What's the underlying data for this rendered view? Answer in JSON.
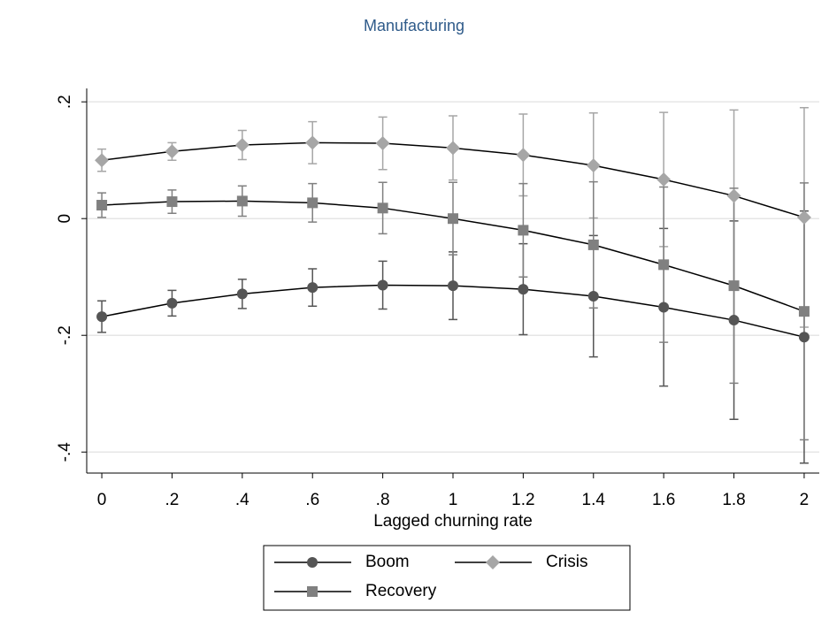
{
  "chart_data": {
    "type": "line",
    "title": "Manufacturing",
    "x_label": "Lagged churning rate",
    "x": [
      0,
      0.2,
      0.4,
      0.6,
      0.8,
      1,
      1.2,
      1.4,
      1.6,
      1.8,
      2
    ],
    "xlim": [
      -0.043,
      2.043
    ],
    "xticks": [
      0,
      {
        "value": 0.2,
        "label": ".2"
      },
      {
        "value": 0.4,
        "label": ".4"
      },
      {
        "value": 0.6,
        "label": ".6"
      },
      {
        "value": 0.8,
        "label": ".8"
      },
      1,
      1.2,
      1.4,
      1.6,
      1.8,
      2
    ],
    "ylim": [
      -0.436,
      0.223
    ],
    "yticks": [
      {
        "value": -0.4,
        "label": "-.4"
      },
      {
        "value": -0.2,
        "label": "-.2"
      },
      0,
      {
        "value": 0.2,
        "label": ".2"
      }
    ],
    "grid": true,
    "series": [
      {
        "name": "Boom",
        "color": "#555555",
        "marker": "circle",
        "values": [
          -0.168,
          -0.145,
          -0.129,
          -0.118,
          -0.114,
          -0.115,
          -0.121,
          -0.133,
          -0.152,
          -0.174,
          -0.203
        ],
        "errors": [
          0.027,
          0.022,
          0.025,
          0.032,
          0.041,
          0.058,
          0.078,
          0.104,
          0.135,
          0.17,
          0.216
        ]
      },
      {
        "name": "Crisis",
        "color": "#a6a6a6",
        "marker": "diamond",
        "values": [
          0.1,
          0.115,
          0.126,
          0.13,
          0.129,
          0.121,
          0.109,
          0.091,
          0.067,
          0.039,
          0.002
        ],
        "errors": [
          0.019,
          0.015,
          0.025,
          0.036,
          0.045,
          0.055,
          0.07,
          0.09,
          0.115,
          0.147,
          0.188
        ]
      },
      {
        "name": "Recovery",
        "color": "#808080",
        "marker": "square",
        "values": [
          0.023,
          0.029,
          0.03,
          0.027,
          0.018,
          0.0,
          -0.02,
          -0.045,
          -0.079,
          -0.115,
          -0.159
        ],
        "errors": [
          0.021,
          0.02,
          0.026,
          0.033,
          0.044,
          0.062,
          0.08,
          0.108,
          0.133,
          0.167,
          0.22
        ]
      }
    ]
  }
}
